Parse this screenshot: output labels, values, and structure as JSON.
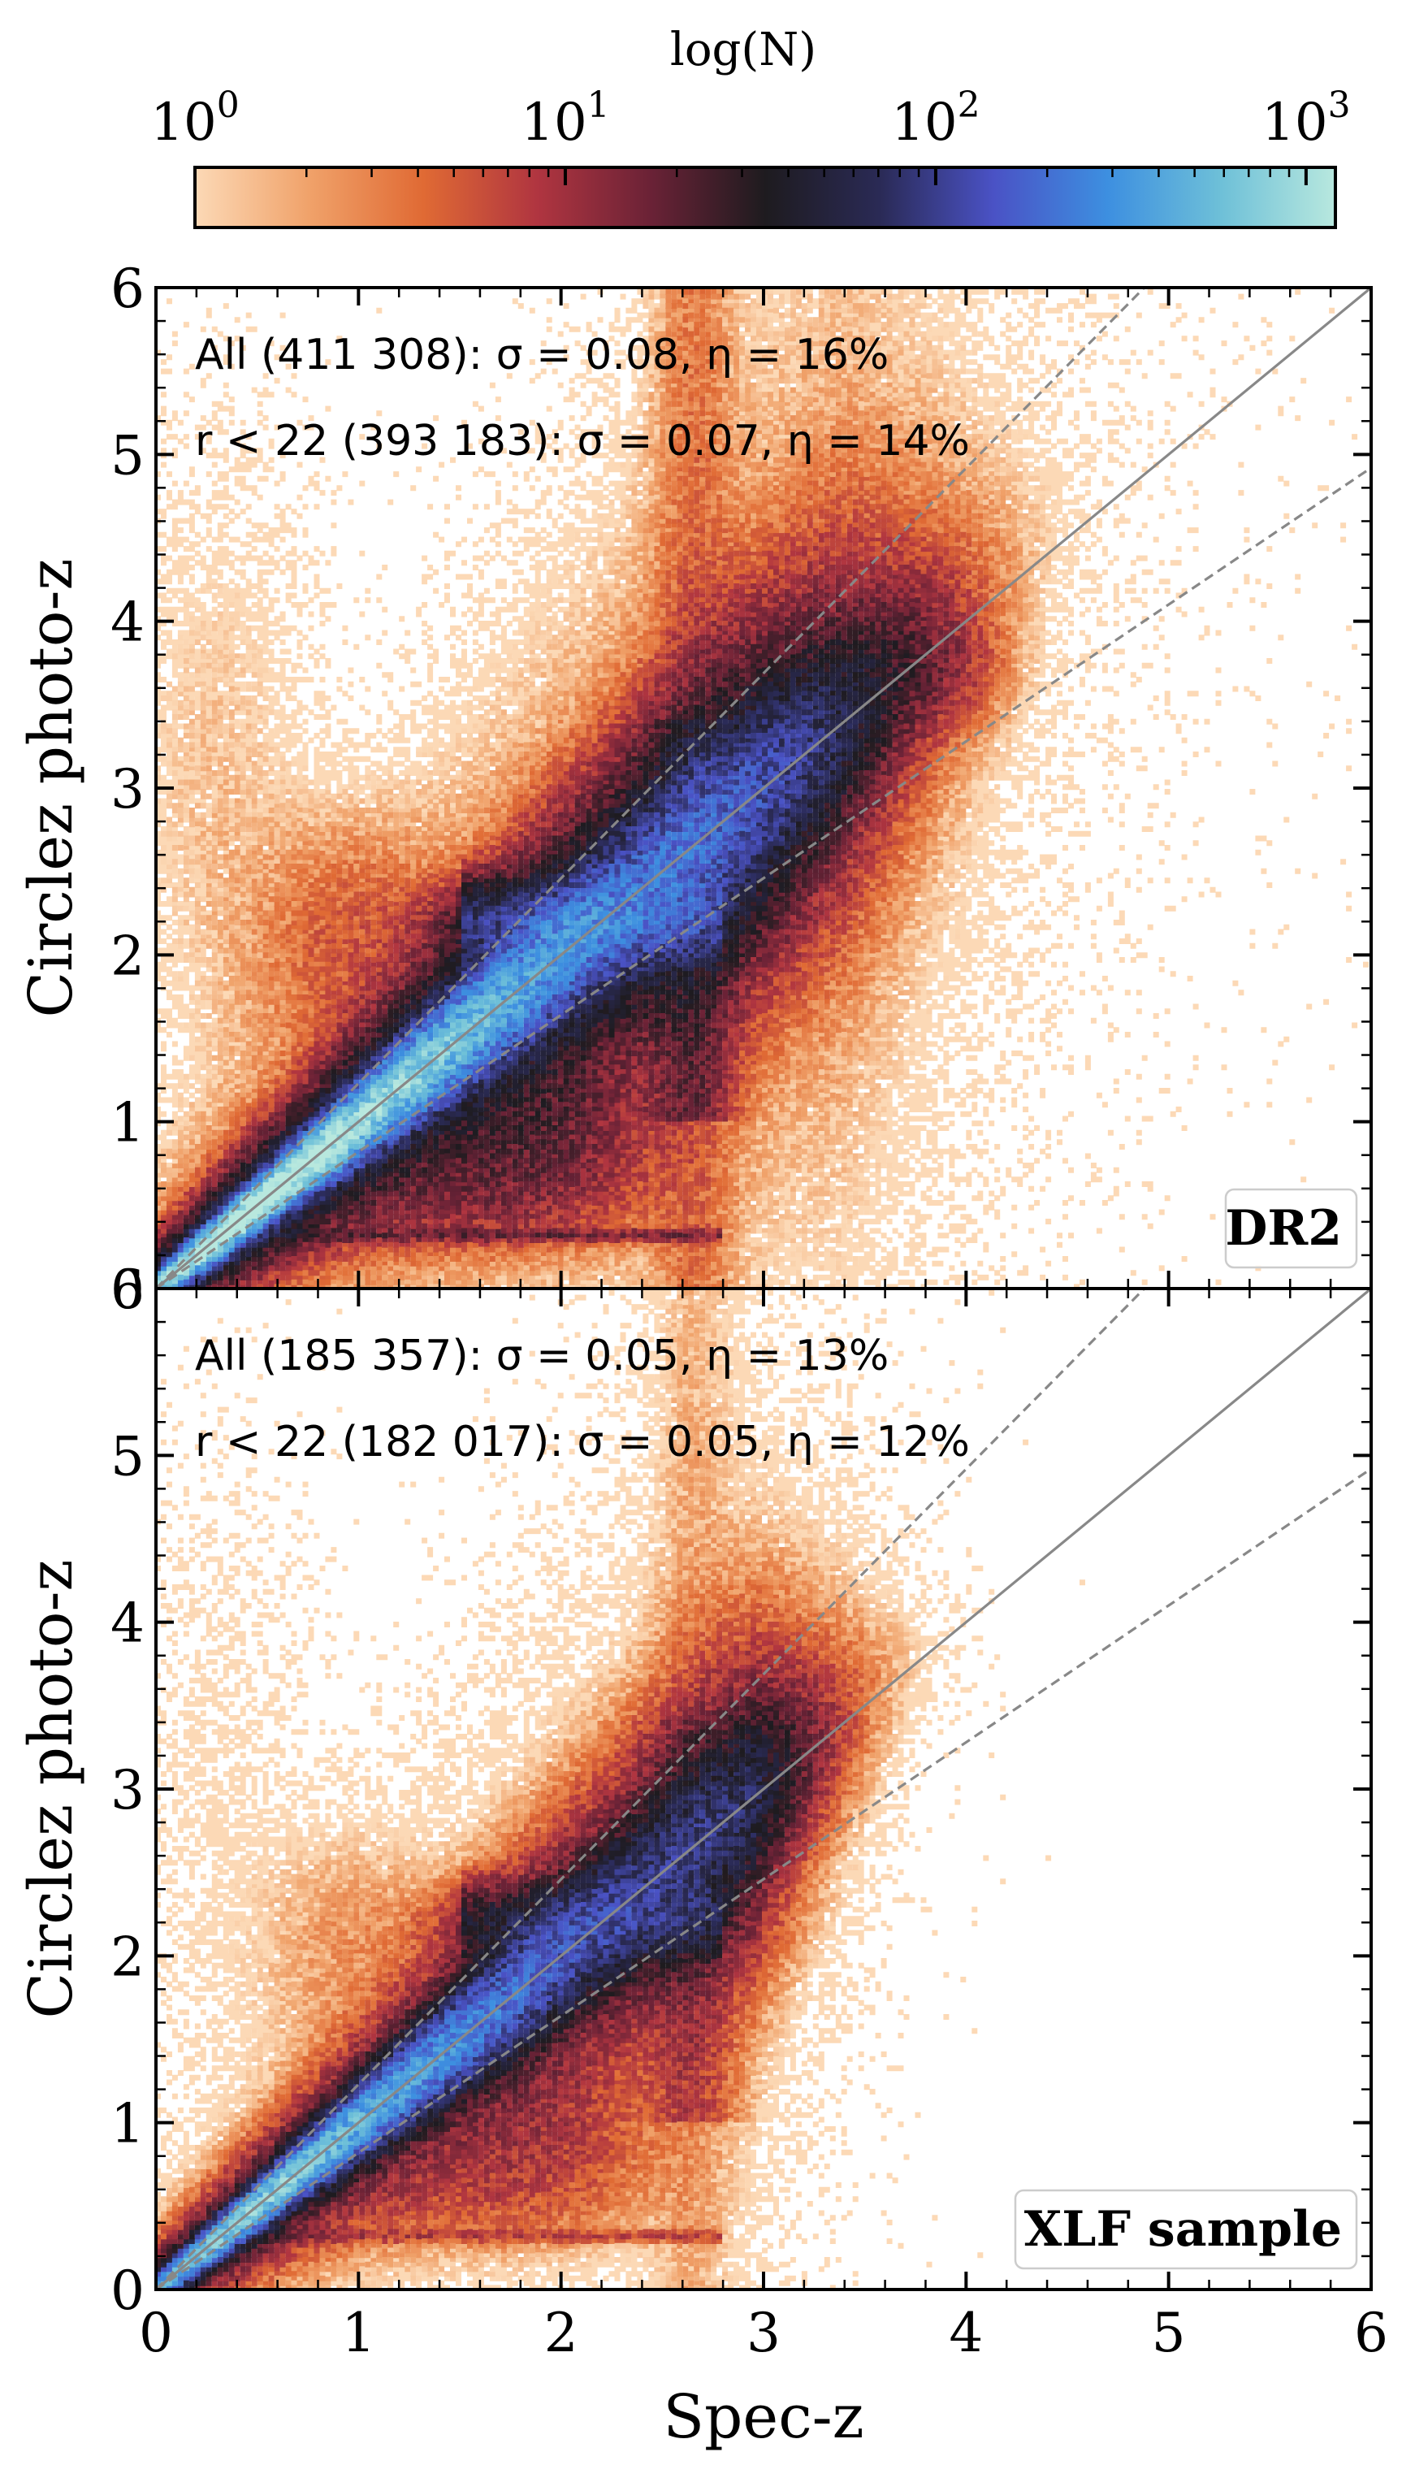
{
  "colorbar": {
    "label": "log(N)",
    "ticks": [
      "10^0",
      "10^1",
      "10^2",
      "10^3"
    ],
    "scale": "log",
    "range": [
      1,
      1200
    ],
    "colormap": [
      "#fcd9b6",
      "#f0a26a",
      "#e06a34",
      "#b03540",
      "#6a2236",
      "#1e1b1f",
      "#2a2a55",
      "#4a52c5",
      "#3d8fe0",
      "#6ec0d8",
      "#b8e8de"
    ]
  },
  "chart_data": [
    {
      "type": "heatmap",
      "name": "DR2",
      "badge": "DR2",
      "stats": [
        {
          "text": "All (411 308): σ = 0.08, η = 16%"
        },
        {
          "text": "r < 22 (393 183): σ = 0.07, η = 14%"
        }
      ],
      "xlabel": "",
      "ylabel": "Circlez photo-z",
      "xlim": [
        0,
        6
      ],
      "ylim": [
        0,
        6
      ],
      "xticks": [],
      "yticks": [
        "0",
        "1",
        "2",
        "3",
        "4",
        "5",
        "6"
      ],
      "lines": [
        {
          "style": "solid",
          "points": [
            [
              0,
              0
            ],
            [
              6,
              6
            ]
          ]
        },
        {
          "style": "dashed",
          "points": [
            [
              0,
              0
            ],
            [
              4.88,
              6
            ]
          ]
        },
        {
          "style": "dashed",
          "points": [
            [
              0,
              0
            ],
            [
              6,
              4.92
            ]
          ]
        }
      ]
    },
    {
      "type": "heatmap",
      "name": "XLF sample",
      "badge": "XLF sample",
      "stats": [
        {
          "text": "All (185 357): σ = 0.05, η = 13%"
        },
        {
          "text": "r < 22 (182 017): σ = 0.05, η = 12%"
        }
      ],
      "xlabel": "Spec-z",
      "ylabel": "Circlez photo-z",
      "xlim": [
        0,
        6
      ],
      "ylim": [
        0,
        6
      ],
      "xticks": [
        "0",
        "1",
        "2",
        "3",
        "4",
        "5",
        "6"
      ],
      "yticks": [
        "0",
        "1",
        "2",
        "3",
        "4",
        "5",
        "6"
      ],
      "lines": [
        {
          "style": "solid",
          "points": [
            [
              0,
              0
            ],
            [
              6,
              6
            ]
          ]
        },
        {
          "style": "dashed",
          "points": [
            [
              0,
              0
            ],
            [
              4.88,
              6
            ]
          ]
        },
        {
          "style": "dashed",
          "points": [
            [
              0,
              0
            ],
            [
              6,
              4.92
            ]
          ]
        }
      ]
    }
  ]
}
